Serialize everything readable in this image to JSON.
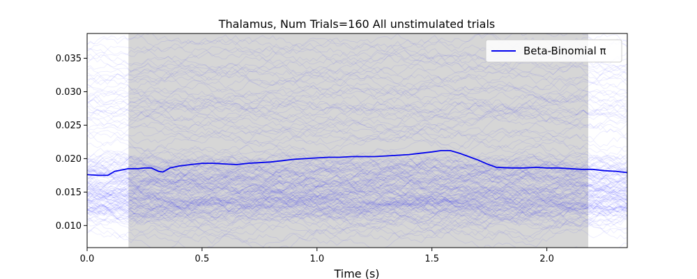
{
  "chart_data": {
    "type": "line",
    "title": "Thalamus, Num Trials=160 All unstimulated trials",
    "xlabel": "Time (s)",
    "ylabel": "",
    "xlim": [
      0.0,
      2.35
    ],
    "ylim": [
      0.0067,
      0.0387
    ],
    "x_ticks": [
      0.0,
      0.5,
      1.0,
      1.5,
      2.0
    ],
    "x_tick_labels": [
      "0.0",
      "0.5",
      "1.0",
      "1.5",
      "2.0"
    ],
    "y_ticks": [
      0.01,
      0.015,
      0.02,
      0.025,
      0.03,
      0.035
    ],
    "y_tick_labels": [
      "0.010",
      "0.015",
      "0.020",
      "0.025",
      "0.030",
      "0.035"
    ],
    "shaded_region": {
      "x_start": 0.18,
      "x_end": 2.18,
      "color": "#d6d6d6"
    },
    "grid": false,
    "legend": {
      "position": "top-right",
      "entries": [
        {
          "label": "Beta-Binomial π",
          "color": "#0000ee"
        }
      ]
    },
    "trials": {
      "count": 160,
      "color": "#0000ff",
      "band_low": 0.0075,
      "band_high": 0.0375,
      "center": 0.0158
    },
    "series": [
      {
        "name": "Beta-Binomial π",
        "color": "#0000ee",
        "x": [
          0.0,
          0.05,
          0.09,
          0.12,
          0.15,
          0.18,
          0.22,
          0.25,
          0.28,
          0.31,
          0.33,
          0.36,
          0.4,
          0.45,
          0.5,
          0.55,
          0.6,
          0.65,
          0.7,
          0.75,
          0.8,
          0.85,
          0.9,
          0.95,
          1.0,
          1.05,
          1.1,
          1.15,
          1.2,
          1.25,
          1.3,
          1.35,
          1.4,
          1.45,
          1.5,
          1.54,
          1.58,
          1.62,
          1.66,
          1.7,
          1.74,
          1.78,
          1.85,
          1.9,
          1.95,
          2.0,
          2.05,
          2.1,
          2.15,
          2.2,
          2.25,
          2.3,
          2.35
        ],
        "values": [
          0.0176,
          0.0175,
          0.0175,
          0.0181,
          0.0183,
          0.0185,
          0.0185,
          0.0186,
          0.0186,
          0.0181,
          0.018,
          0.0186,
          0.0189,
          0.0191,
          0.0193,
          0.0193,
          0.0192,
          0.0191,
          0.0193,
          0.0194,
          0.0195,
          0.0197,
          0.0199,
          0.02,
          0.0201,
          0.0202,
          0.0202,
          0.0203,
          0.0203,
          0.0203,
          0.0204,
          0.0205,
          0.0206,
          0.0208,
          0.021,
          0.0212,
          0.0212,
          0.0208,
          0.0203,
          0.0198,
          0.0192,
          0.0187,
          0.0186,
          0.0186,
          0.0187,
          0.0186,
          0.0186,
          0.0185,
          0.0184,
          0.0184,
          0.0182,
          0.0181,
          0.0179
        ]
      }
    ]
  }
}
